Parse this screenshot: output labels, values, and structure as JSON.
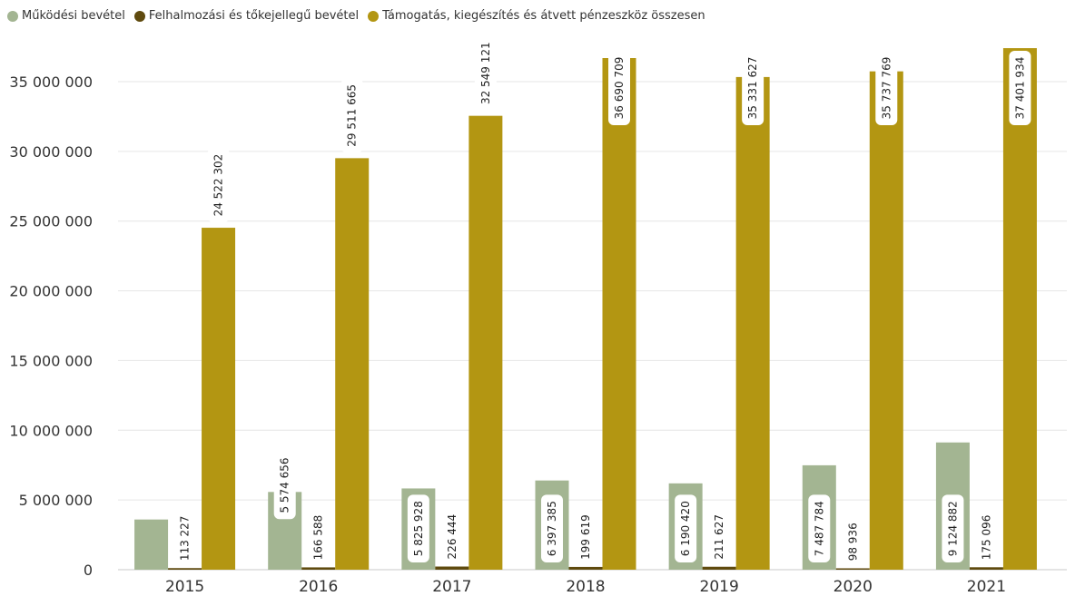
{
  "chart_data": {
    "type": "bar",
    "categories": [
      "2015",
      "2016",
      "2017",
      "2018",
      "2019",
      "2020",
      "2021"
    ],
    "series": [
      {
        "name": "Működési bevétel",
        "color": "#a3b592",
        "values": [
          3600000,
          5574656,
          5825928,
          6397385,
          6190420,
          7487784,
          9124882
        ],
        "labels": [
          "",
          "5 574 656",
          "5 825 928",
          "6 397 385",
          "6 190 420",
          "7 487 784",
          "9 124 882"
        ]
      },
      {
        "name": "Felhalmozási és tőkejellegű bevétel",
        "color": "#5f4a0e",
        "values": [
          113227,
          166588,
          226444,
          199619,
          211627,
          98936,
          175096
        ],
        "labels": [
          "113 227",
          "166 588",
          "226 444",
          "199 619",
          "211 627",
          "98 936",
          "175 096"
        ]
      },
      {
        "name": "Támogatás, kiegészítés és átvett pénzeszköz összesen",
        "color": "#b39612",
        "values": [
          24522302,
          29511665,
          32549121,
          36690709,
          35331627,
          35737769,
          37401934
        ],
        "labels": [
          "24 522 302",
          "29 511 665",
          "32 549 121",
          "36 690 709",
          "35 331 627",
          "35 737 769",
          "37 401 934"
        ]
      }
    ],
    "yticks": [
      "0",
      "5 000 000",
      "10 000 000",
      "15 000 000",
      "20 000 000",
      "25 000 000",
      "30 000 000",
      "35 000 000"
    ],
    "ylim": [
      0,
      37401934
    ],
    "grid": true,
    "legend_position": "top-left"
  }
}
